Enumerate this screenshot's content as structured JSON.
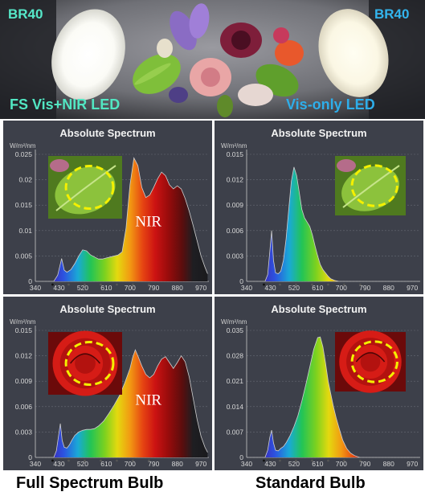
{
  "photo": {
    "left_model": "BR40",
    "right_model": "BR40",
    "left_label": "FS Vis+NIR LED",
    "right_label": "Vis-only LED",
    "label_colors": {
      "left_model": "#56e8c9",
      "right_model": "#33b5ee",
      "left_label": "#52e6c2",
      "right_label": "#2eaeea"
    }
  },
  "captions": {
    "left": "Full Spectrum Bulb",
    "right": "Standard Bulb"
  },
  "chart_data": [
    {
      "type": "area",
      "title": "Absolute Spectrum",
      "ylabel": "W/m²/nm",
      "annotation": "NIR",
      "inset": "leaf",
      "x_ticks": [
        340,
        430,
        520,
        610,
        700,
        790,
        880,
        970
      ],
      "y_ticks": [
        "0",
        "0.005",
        "0.01",
        "0.015",
        "0.02",
        "0.025"
      ],
      "xlim": [
        340,
        1000
      ],
      "ylim": [
        0,
        0.025
      ],
      "x": [
        410,
        425,
        440,
        450,
        460,
        475,
        490,
        505,
        520,
        535,
        550,
        565,
        580,
        595,
        610,
        625,
        640,
        655,
        670,
        685,
        700,
        715,
        730,
        745,
        760,
        775,
        790,
        805,
        820,
        835,
        850,
        865,
        880,
        895,
        910,
        925,
        940,
        955,
        970,
        985,
        995
      ],
      "values": [
        0,
        0.0012,
        0.0045,
        0.0022,
        0.0018,
        0.0023,
        0.0035,
        0.005,
        0.0062,
        0.006,
        0.0052,
        0.0048,
        0.0044,
        0.0044,
        0.0046,
        0.0048,
        0.005,
        0.0052,
        0.0058,
        0.0105,
        0.019,
        0.0243,
        0.0228,
        0.0185,
        0.0165,
        0.017,
        0.0185,
        0.0202,
        0.0215,
        0.0208,
        0.019,
        0.0182,
        0.0188,
        0.0182,
        0.0163,
        0.0138,
        0.011,
        0.008,
        0.005,
        0.0028,
        0.0015
      ]
    },
    {
      "type": "area",
      "title": "Absolute Spectrum",
      "ylabel": "W/m²/nm",
      "inset": "leaf",
      "x_ticks": [
        340,
        430,
        520,
        610,
        700,
        790,
        880,
        970
      ],
      "y_ticks": [
        "0",
        "0.003",
        "0.006",
        "0.009",
        "0.012",
        "0.015"
      ],
      "xlim": [
        340,
        1000
      ],
      "ylim": [
        0,
        0.015
      ],
      "x": [
        410,
        420,
        428,
        435,
        442,
        450,
        460,
        470,
        480,
        490,
        500,
        510,
        520,
        530,
        540,
        550,
        560,
        570,
        580,
        590,
        600,
        610,
        620,
        630,
        640,
        650,
        660,
        675,
        690
      ],
      "values": [
        0,
        0.0008,
        0.0035,
        0.006,
        0.0025,
        0.001,
        0.0009,
        0.0012,
        0.0025,
        0.005,
        0.0085,
        0.0118,
        0.0135,
        0.0125,
        0.0105,
        0.0085,
        0.0075,
        0.007,
        0.0065,
        0.0055,
        0.0042,
        0.003,
        0.002,
        0.0014,
        0.001,
        0.0006,
        0.0003,
        0.0001,
        0
      ]
    },
    {
      "type": "area",
      "title": "Absolute Spectrum",
      "ylabel": "W/m²/nm",
      "annotation": "NIR",
      "inset": "rose",
      "x_ticks": [
        340,
        430,
        520,
        610,
        700,
        790,
        880,
        970
      ],
      "y_ticks": [
        "0",
        "0.003",
        "0.006",
        "0.009",
        "0.012",
        "0.015"
      ],
      "xlim": [
        340,
        1000
      ],
      "ylim": [
        0,
        0.015
      ],
      "x": [
        410,
        420,
        428,
        435,
        442,
        450,
        460,
        470,
        480,
        490,
        505,
        520,
        535,
        550,
        565,
        580,
        600,
        620,
        640,
        660,
        680,
        700,
        710,
        720,
        730,
        745,
        760,
        775,
        790,
        805,
        820,
        835,
        850,
        865,
        880,
        895,
        910,
        925,
        940,
        955,
        970,
        985,
        995
      ],
      "values": [
        0,
        0.0008,
        0.0025,
        0.004,
        0.002,
        0.0012,
        0.0011,
        0.0015,
        0.0021,
        0.0026,
        0.003,
        0.0032,
        0.0033,
        0.0033,
        0.0034,
        0.0037,
        0.0043,
        0.0052,
        0.0062,
        0.0073,
        0.0088,
        0.0105,
        0.0118,
        0.0127,
        0.012,
        0.0108,
        0.0098,
        0.0094,
        0.0098,
        0.0108,
        0.0116,
        0.0119,
        0.0112,
        0.0105,
        0.0112,
        0.012,
        0.0113,
        0.0095,
        0.007,
        0.0045,
        0.0025,
        0.0012,
        0.0006
      ]
    },
    {
      "type": "area",
      "title": "Absolute Spectrum",
      "ylabel": "W/m²/nm",
      "inset": "rose",
      "x_ticks": [
        340,
        430,
        520,
        610,
        700,
        790,
        880,
        970
      ],
      "y_ticks": [
        "0",
        "0.007",
        "0.014",
        "0.021",
        "0.028",
        "0.035"
      ],
      "xlim": [
        340,
        1000
      ],
      "ylim": [
        0,
        0.035
      ],
      "x": [
        410,
        420,
        428,
        435,
        442,
        450,
        460,
        470,
        480,
        490,
        505,
        520,
        535,
        550,
        565,
        580,
        595,
        610,
        620,
        630,
        640,
        650,
        660,
        670,
        680,
        690,
        705,
        720,
        735,
        750,
        770
      ],
      "values": [
        0,
        0.002,
        0.0055,
        0.0075,
        0.004,
        0.002,
        0.0018,
        0.0025,
        0.003,
        0.004,
        0.006,
        0.0085,
        0.0115,
        0.0155,
        0.02,
        0.0248,
        0.0298,
        0.033,
        0.0332,
        0.0305,
        0.026,
        0.021,
        0.0175,
        0.014,
        0.011,
        0.0085,
        0.0048,
        0.0025,
        0.0012,
        0.0005,
        0
      ]
    }
  ]
}
